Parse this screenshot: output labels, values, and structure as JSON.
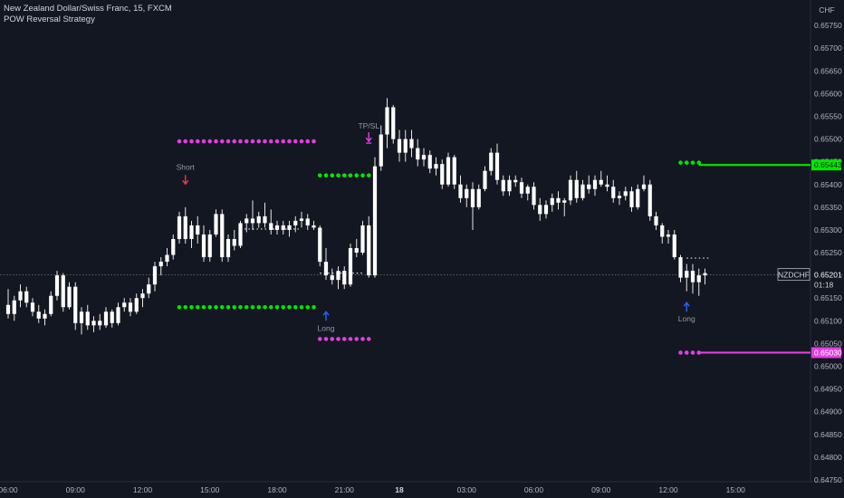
{
  "header": {
    "symbol_line": "New Zealand Dollar/Swiss Franc, 15, FXCM",
    "strategy_name": "POW Reversal Strategy"
  },
  "currency_label": "CHF",
  "chart_data": {
    "type": "candlestick",
    "symbol": "NZDCHF",
    "timeframe": "15",
    "ylim": [
      0.6474,
      0.658
    ],
    "y_ticks": [
      0.6575,
      0.657,
      0.6565,
      0.656,
      0.6555,
      0.655,
      0.6545,
      0.654,
      0.6535,
      0.653,
      0.6525,
      0.652,
      0.6515,
      0.651,
      0.6505,
      0.65,
      0.6495,
      0.649,
      0.6485,
      0.648,
      0.6475
    ],
    "x_ticks": [
      {
        "label": "06:00",
        "bar": 0,
        "bold": false
      },
      {
        "label": "09:00",
        "bar": 11,
        "bold": false
      },
      {
        "label": "12:00",
        "bar": 22,
        "bold": false
      },
      {
        "label": "15:00",
        "bar": 33,
        "bold": false
      },
      {
        "label": "18:00",
        "bar": 44,
        "bold": false
      },
      {
        "label": "21:00",
        "bar": 55,
        "bold": false
      },
      {
        "label": "18",
        "bar": 64,
        "bold": true
      },
      {
        "label": "03:00",
        "bar": 75,
        "bold": false
      },
      {
        "label": "06:00",
        "bar": 86,
        "bold": false
      },
      {
        "label": "09:00",
        "bar": 97,
        "bold": false
      },
      {
        "label": "12:00",
        "bar": 108,
        "bold": false
      },
      {
        "label": "15:00",
        "bar": 119,
        "bold": false
      }
    ],
    "current_price": 0.65201,
    "countdown": "01:18",
    "symbol_label": "NZDCHF",
    "levels": [
      {
        "name": "take-profit",
        "value": 0.65443,
        "label": "0.65443",
        "color": "#00e600"
      },
      {
        "name": "stop-loss",
        "value": 0.6503,
        "label": "0.65030",
        "color": "#e040e0"
      }
    ],
    "dotted_levels": [
      {
        "value": 0.65495,
        "from_bar": 28,
        "to_bar": 50,
        "color": "#e040e0"
      },
      {
        "value": 0.6513,
        "from_bar": 28,
        "to_bar": 50,
        "color": "#00e600"
      },
      {
        "value": 0.6542,
        "from_bar": 51,
        "to_bar": 59,
        "color": "#00e600"
      },
      {
        "value": 0.6506,
        "from_bar": 51,
        "to_bar": 59,
        "color": "#e040e0"
      },
      {
        "value": 0.65448,
        "from_bar": 110,
        "to_bar": 113,
        "color": "#00e600"
      },
      {
        "value": 0.6503,
        "from_bar": 110,
        "to_bar": 113,
        "color": "#e040e0"
      }
    ],
    "signals": [
      {
        "label": "Short",
        "bar": 29,
        "type": "short",
        "price": 0.65385
      },
      {
        "label": "Long",
        "bar": 52,
        "type": "long",
        "price": 0.6513
      },
      {
        "label": "TP/SL",
        "bar": 59,
        "type": "exit",
        "price": 0.65515
      },
      {
        "label": "Long",
        "bar": 111,
        "type": "long",
        "price": 0.6515
      }
    ],
    "candles": [
      [
        0.65135,
        0.6517,
        0.65105,
        0.65115
      ],
      [
        0.65115,
        0.65155,
        0.651,
        0.65145
      ],
      [
        0.65145,
        0.6518,
        0.6513,
        0.65165
      ],
      [
        0.65165,
        0.65175,
        0.6513,
        0.6514
      ],
      [
        0.6514,
        0.6515,
        0.6511,
        0.6512
      ],
      [
        0.6512,
        0.65135,
        0.65095,
        0.65105
      ],
      [
        0.65105,
        0.65125,
        0.6509,
        0.65115
      ],
      [
        0.65115,
        0.65165,
        0.6511,
        0.65155
      ],
      [
        0.65155,
        0.6521,
        0.65145,
        0.652
      ],
      [
        0.652,
        0.65205,
        0.6512,
        0.6513
      ],
      [
        0.6513,
        0.65185,
        0.65125,
        0.65175
      ],
      [
        0.65175,
        0.65185,
        0.6508,
        0.65095
      ],
      [
        0.65095,
        0.6513,
        0.6507,
        0.6512
      ],
      [
        0.6512,
        0.65135,
        0.6508,
        0.6509
      ],
      [
        0.6509,
        0.6511,
        0.65075,
        0.651
      ],
      [
        0.651,
        0.65115,
        0.6508,
        0.6509
      ],
      [
        0.6509,
        0.6513,
        0.65085,
        0.6512
      ],
      [
        0.6512,
        0.65125,
        0.65085,
        0.65095
      ],
      [
        0.65095,
        0.6514,
        0.6509,
        0.6513
      ],
      [
        0.6513,
        0.6515,
        0.6512,
        0.6514
      ],
      [
        0.6514,
        0.6515,
        0.6511,
        0.6512
      ],
      [
        0.6512,
        0.6516,
        0.65115,
        0.6515
      ],
      [
        0.6515,
        0.6517,
        0.6513,
        0.6516
      ],
      [
        0.6516,
        0.65195,
        0.6515,
        0.6518
      ],
      [
        0.6518,
        0.6523,
        0.65165,
        0.6522
      ],
      [
        0.6522,
        0.6524,
        0.652,
        0.6523
      ],
      [
        0.6523,
        0.6526,
        0.6522,
        0.65245
      ],
      [
        0.65245,
        0.6529,
        0.65235,
        0.6528
      ],
      [
        0.6528,
        0.6534,
        0.6527,
        0.6533
      ],
      [
        0.6533,
        0.6535,
        0.6527,
        0.6528
      ],
      [
        0.6528,
        0.6532,
        0.6526,
        0.6531
      ],
      [
        0.6531,
        0.6533,
        0.6527,
        0.6529
      ],
      [
        0.6529,
        0.6531,
        0.6523,
        0.6524
      ],
      [
        0.6524,
        0.653,
        0.6523,
        0.6529
      ],
      [
        0.6529,
        0.65345,
        0.65285,
        0.65335
      ],
      [
        0.65335,
        0.65345,
        0.6523,
        0.6524
      ],
      [
        0.6524,
        0.6529,
        0.6523,
        0.6528
      ],
      [
        0.6528,
        0.653,
        0.65255,
        0.65265
      ],
      [
        0.65265,
        0.6532,
        0.6526,
        0.65315
      ],
      [
        0.65315,
        0.65335,
        0.65295,
        0.65325
      ],
      [
        0.65325,
        0.65365,
        0.653,
        0.65315
      ],
      [
        0.65315,
        0.6534,
        0.65305,
        0.6533
      ],
      [
        0.6533,
        0.6536,
        0.65305,
        0.65315
      ],
      [
        0.65315,
        0.65345,
        0.6529,
        0.653
      ],
      [
        0.653,
        0.6532,
        0.6529,
        0.6531
      ],
      [
        0.6531,
        0.6532,
        0.6529,
        0.653
      ],
      [
        0.653,
        0.6532,
        0.65285,
        0.6531
      ],
      [
        0.6531,
        0.6533,
        0.65295,
        0.6532
      ],
      [
        0.6532,
        0.6534,
        0.65305,
        0.65325
      ],
      [
        0.65325,
        0.65335,
        0.653,
        0.6531
      ],
      [
        0.6531,
        0.6532,
        0.653,
        0.65305
      ],
      [
        0.65305,
        0.6531,
        0.6522,
        0.6523
      ],
      [
        0.6523,
        0.6526,
        0.6519,
        0.652
      ],
      [
        0.652,
        0.65215,
        0.6518,
        0.6519
      ],
      [
        0.6519,
        0.6522,
        0.6517,
        0.6521
      ],
      [
        0.6521,
        0.6522,
        0.6517,
        0.6518
      ],
      [
        0.6518,
        0.6527,
        0.65175,
        0.6526
      ],
      [
        0.6526,
        0.6528,
        0.6524,
        0.6525
      ],
      [
        0.6525,
        0.6532,
        0.65245,
        0.6531
      ],
      [
        0.6531,
        0.6533,
        0.65195,
        0.652
      ],
      [
        0.652,
        0.6546,
        0.65195,
        0.6544
      ],
      [
        0.6544,
        0.6553,
        0.6543,
        0.6551
      ],
      [
        0.6551,
        0.6559,
        0.6548,
        0.6557
      ],
      [
        0.6557,
        0.65575,
        0.6549,
        0.655
      ],
      [
        0.655,
        0.6552,
        0.6545,
        0.6547
      ],
      [
        0.6547,
        0.6552,
        0.6545,
        0.655
      ],
      [
        0.655,
        0.6552,
        0.6546,
        0.6548
      ],
      [
        0.6548,
        0.655,
        0.6544,
        0.65455
      ],
      [
        0.65455,
        0.6548,
        0.6544,
        0.65465
      ],
      [
        0.65465,
        0.65475,
        0.65425,
        0.65435
      ],
      [
        0.65435,
        0.6546,
        0.6542,
        0.65445
      ],
      [
        0.65445,
        0.65455,
        0.6539,
        0.654
      ],
      [
        0.654,
        0.6547,
        0.65395,
        0.6546
      ],
      [
        0.6546,
        0.65465,
        0.6539,
        0.654
      ],
      [
        0.654,
        0.6542,
        0.6536,
        0.6537
      ],
      [
        0.6537,
        0.654,
        0.6535,
        0.6539
      ],
      [
        0.6539,
        0.65405,
        0.653,
        0.6535
      ],
      [
        0.6535,
        0.654,
        0.65345,
        0.6539
      ],
      [
        0.6539,
        0.6544,
        0.65385,
        0.6543
      ],
      [
        0.6543,
        0.6548,
        0.6542,
        0.6547
      ],
      [
        0.6547,
        0.6549,
        0.654,
        0.6541
      ],
      [
        0.6541,
        0.6542,
        0.65375,
        0.65385
      ],
      [
        0.65385,
        0.6542,
        0.65375,
        0.6541
      ],
      [
        0.6541,
        0.6542,
        0.65395,
        0.65405
      ],
      [
        0.65405,
        0.65415,
        0.6537,
        0.6538
      ],
      [
        0.6538,
        0.654,
        0.65365,
        0.65395
      ],
      [
        0.65395,
        0.65405,
        0.65345,
        0.65355
      ],
      [
        0.65355,
        0.6537,
        0.6532,
        0.65335
      ],
      [
        0.65335,
        0.65365,
        0.65325,
        0.65355
      ],
      [
        0.65355,
        0.6538,
        0.6534,
        0.6537
      ],
      [
        0.6537,
        0.65385,
        0.65345,
        0.6536
      ],
      [
        0.6536,
        0.6537,
        0.6533,
        0.65365
      ],
      [
        0.65365,
        0.6542,
        0.65355,
        0.6541
      ],
      [
        0.6541,
        0.6543,
        0.6536,
        0.6537
      ],
      [
        0.6537,
        0.6541,
        0.65365,
        0.654
      ],
      [
        0.654,
        0.6542,
        0.6538,
        0.6539
      ],
      [
        0.6539,
        0.6542,
        0.65375,
        0.6541
      ],
      [
        0.6541,
        0.6543,
        0.65395,
        0.654
      ],
      [
        0.654,
        0.6542,
        0.65385,
        0.65395
      ],
      [
        0.65395,
        0.6541,
        0.6536,
        0.6537
      ],
      [
        0.6537,
        0.65385,
        0.65355,
        0.65375
      ],
      [
        0.65375,
        0.65395,
        0.65365,
        0.65385
      ],
      [
        0.65385,
        0.65395,
        0.6534,
        0.6535
      ],
      [
        0.6535,
        0.654,
        0.65345,
        0.6539
      ],
      [
        0.6539,
        0.6542,
        0.65385,
        0.654
      ],
      [
        0.654,
        0.6541,
        0.6532,
        0.6533
      ],
      [
        0.6533,
        0.6534,
        0.653,
        0.6531
      ],
      [
        0.6531,
        0.65315,
        0.6527,
        0.65285
      ],
      [
        0.65285,
        0.653,
        0.6527,
        0.6529
      ],
      [
        0.6529,
        0.653,
        0.65235,
        0.6524
      ],
      [
        0.6524,
        0.65245,
        0.65185,
        0.65195
      ],
      [
        0.65195,
        0.65225,
        0.65165,
        0.6521
      ],
      [
        0.6521,
        0.65225,
        0.6516,
        0.65185
      ],
      [
        0.65185,
        0.65215,
        0.65155,
        0.652
      ],
      [
        0.652,
        0.65215,
        0.6518,
        0.65205
      ]
    ]
  }
}
